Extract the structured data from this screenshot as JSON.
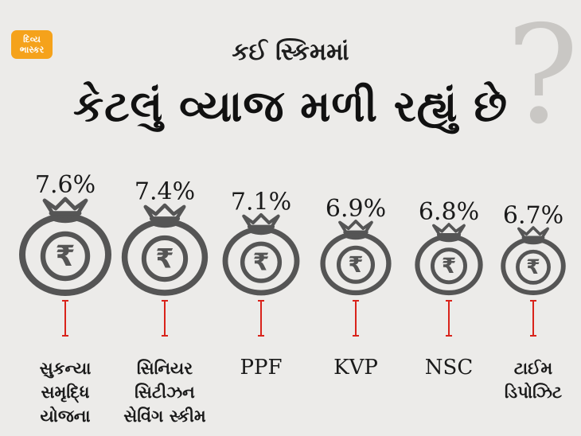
{
  "brand": {
    "line1": "દિવ્ય",
    "line2": "ભાસ્કર"
  },
  "header": {
    "line1": "કઈ સ્કિમમાં",
    "line2": "કેટલું વ્યાજ મળી રહ્યું છે",
    "qmark": "?"
  },
  "colors": {
    "bag": "#555555",
    "accent": "#d9231b",
    "background": "#ecebe9",
    "logo": "#f5a21b"
  },
  "icons": {
    "bag": "money-bag-icon",
    "currency": "rupee-icon"
  },
  "chart_data": {
    "type": "bar",
    "unit": "%",
    "categories": [
      [
        "સુકન્યા",
        "સમૃદ્ધિ",
        "યોજના"
      ],
      [
        "સિનિયર",
        "સિટીઝન",
        "સેવિંગ સ્કીમ"
      ],
      [
        "PPF"
      ],
      [
        "KVP"
      ],
      [
        "NSC"
      ],
      [
        "ટાઈમ",
        "ડિપોઝિટ"
      ]
    ],
    "values": [
      7.6,
      7.4,
      7.1,
      6.9,
      6.8,
      6.7
    ],
    "value_labels": [
      "7.6%",
      "7.4%",
      "7.1%",
      "6.9%",
      "6.8%",
      "6.7%"
    ],
    "currency_symbol": "₹"
  }
}
